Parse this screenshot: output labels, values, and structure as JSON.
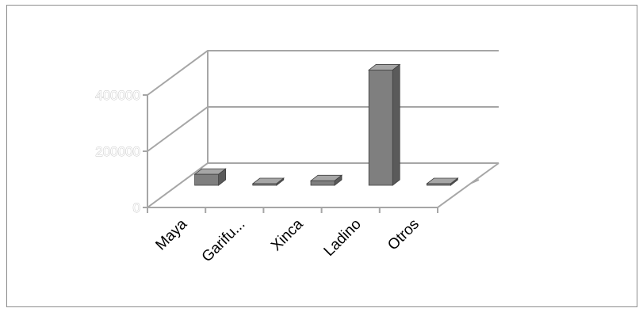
{
  "chart_data": {
    "type": "bar",
    "style": "3d-column",
    "categories": [
      "Maya",
      "Garifu...",
      "Xinca",
      "Ladino",
      "Otros"
    ],
    "values": [
      39000,
      5500,
      16000,
      410000,
      500
    ],
    "yticks": [
      "0",
      "200000",
      "400000"
    ],
    "ylim": [
      0,
      400000
    ],
    "grid": true,
    "legend": "none",
    "title": "",
    "xlabel": "",
    "ylabel": "",
    "colors": {
      "bar_front": "#7f7f7f",
      "bar_side": "#5a5a5a",
      "bar_top": "#a6a6a6",
      "grid": "#a6a6a6",
      "frame": "#8c8c8c"
    }
  }
}
